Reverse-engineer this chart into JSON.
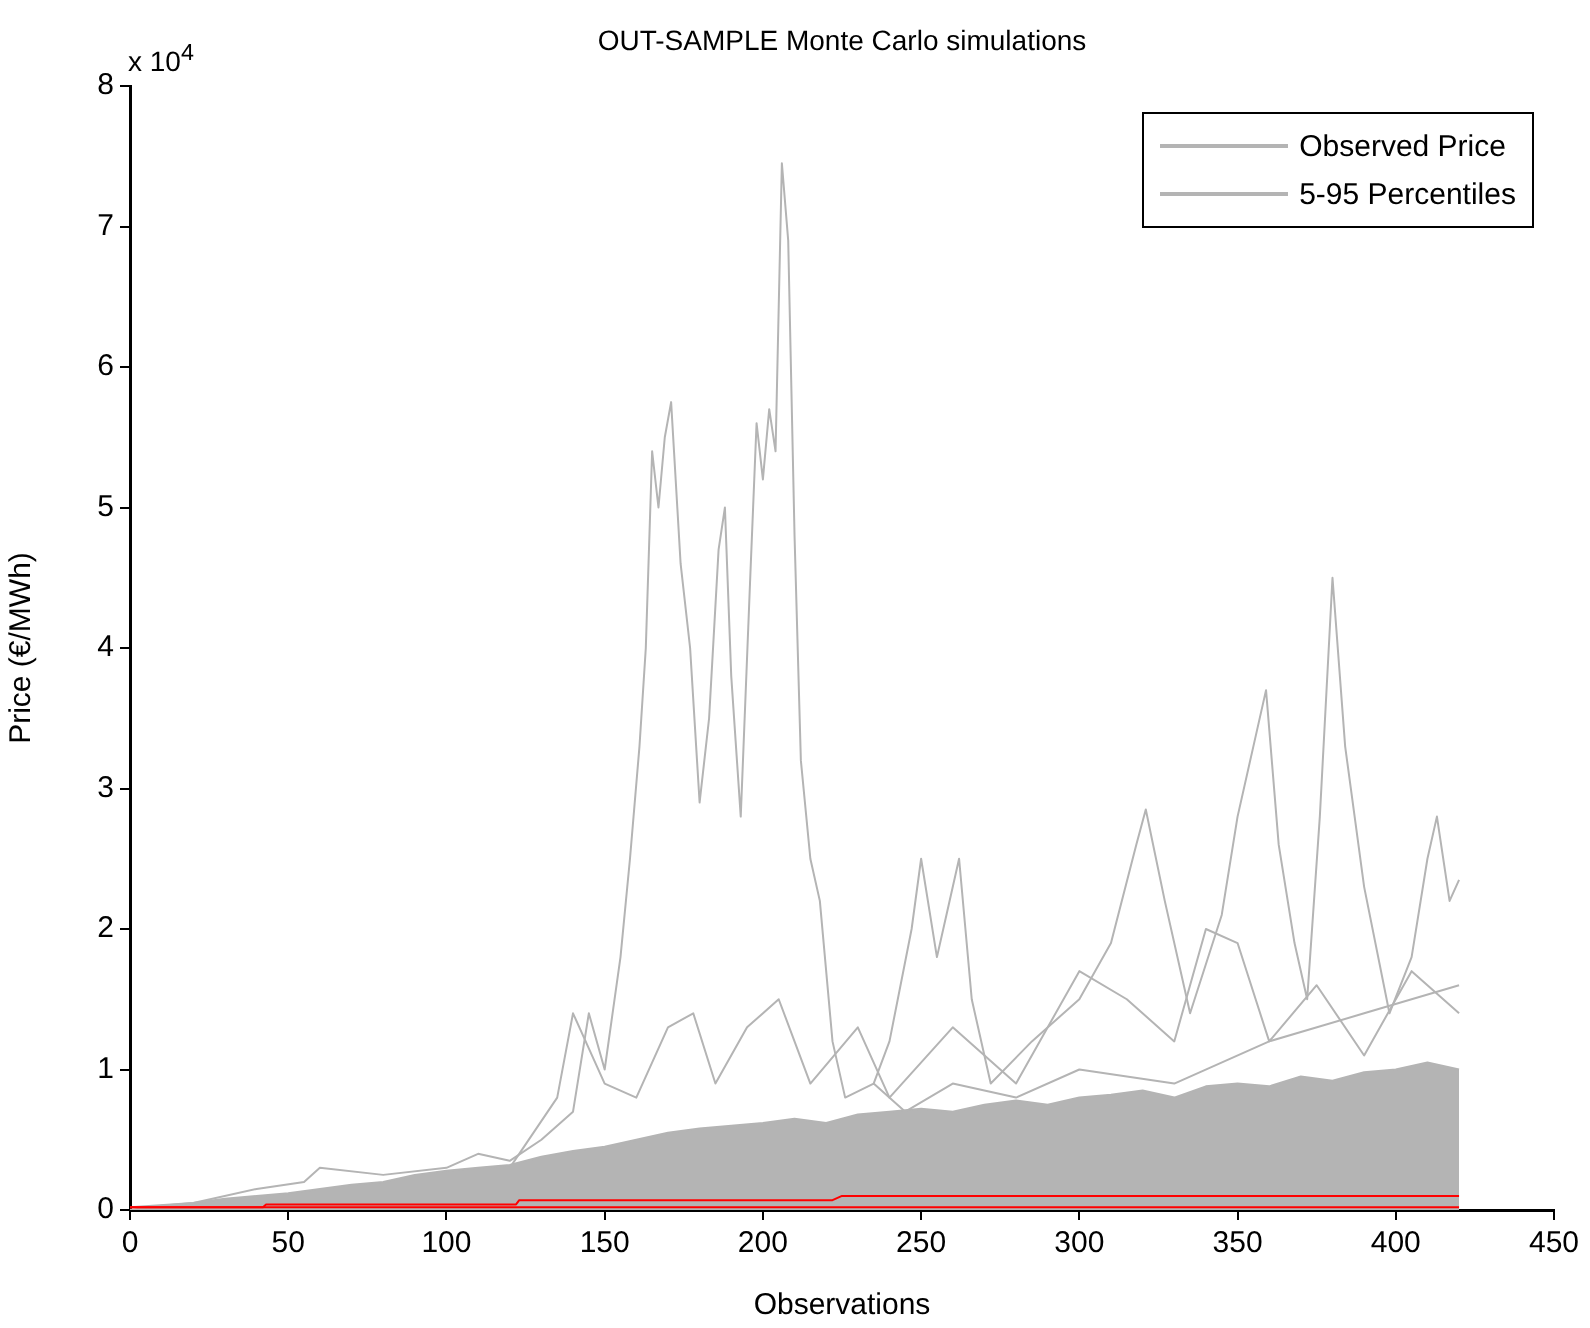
{
  "chart_data": {
    "type": "line",
    "title": "OUT-SAMPLE Monte Carlo simulations",
    "xlabel": "Observations",
    "ylabel": "Price (€/MWh)",
    "annotations": [
      "x 10$^{4}$"
    ],
    "xlim": [
      0,
      450
    ],
    "xticks": [
      0,
      50,
      100,
      150,
      200,
      250,
      300,
      350,
      400,
      450
    ],
    "ylim": [
      0,
      8
    ],
    "yticks": [
      0,
      1,
      2,
      3,
      4,
      5,
      6,
      7,
      8
    ],
    "grid": false,
    "legend": "top right",
    "marker": "none",
    "line_style": "solid",
    "series": [
      {
        "type": "area",
        "color": "#b4b4b4",
        "x": [
          0,
          10,
          20,
          30,
          40,
          50,
          60,
          70,
          80,
          90,
          100,
          110,
          120,
          130,
          140,
          150,
          160,
          170,
          180,
          190,
          200,
          210,
          220,
          230,
          240,
          250,
          260,
          270,
          280,
          290,
          300,
          310,
          320,
          330,
          340,
          350,
          360,
          370,
          380,
          390,
          400,
          410,
          420
        ],
        "values": [
          0,
          0.03,
          0.05,
          0.08,
          0.1,
          0.12,
          0.15,
          0.18,
          0.2,
          0.25,
          0.28,
          0.3,
          0.32,
          0.38,
          0.42,
          0.45,
          0.5,
          0.55,
          0.58,
          0.6,
          0.62,
          0.65,
          0.62,
          0.68,
          0.7,
          0.72,
          0.7,
          0.75,
          0.78,
          0.75,
          0.8,
          0.82,
          0.85,
          0.8,
          0.88,
          0.9,
          0.88,
          0.95,
          0.92,
          0.98,
          1.0,
          1.05,
          1.0
        ]
      },
      {
        "name": "Observed Price",
        "color": "#b4b4b4",
        "x": [
          0,
          20,
          40,
          55,
          60,
          80,
          100,
          110,
          120,
          130,
          140,
          145,
          150,
          155,
          158,
          161,
          163,
          165,
          167,
          169,
          171,
          174,
          177,
          180,
          183,
          186,
          188,
          190,
          193,
          196,
          198,
          200,
          202,
          204,
          206,
          208,
          210,
          212,
          215,
          218,
          222,
          226,
          235,
          245,
          260,
          280,
          300,
          330,
          360,
          390,
          420
        ],
        "values": [
          0.02,
          0.05,
          0.15,
          0.2,
          0.3,
          0.25,
          0.3,
          0.4,
          0.35,
          0.5,
          0.7,
          1.4,
          1.0,
          1.8,
          2.5,
          3.3,
          4.0,
          5.4,
          5.0,
          5.5,
          5.75,
          4.6,
          4.0,
          2.9,
          3.5,
          4.7,
          5.0,
          3.8,
          2.8,
          4.5,
          5.6,
          5.2,
          5.7,
          5.4,
          7.45,
          6.9,
          4.8,
          3.2,
          2.5,
          2.2,
          1.2,
          0.8,
          0.9,
          0.7,
          0.9,
          0.8,
          1.0,
          0.9,
          1.2,
          1.4,
          1.6
        ]
      },
      {
        "name": "5-95 Percentiles",
        "color": "#b4b4b4",
        "x": [
          235,
          240,
          247,
          250,
          255,
          258,
          262,
          266,
          272,
          285,
          300,
          310,
          318,
          321,
          327,
          335,
          345,
          350,
          355,
          359,
          363,
          368,
          372,
          376,
          380,
          384,
          390,
          398,
          405,
          410,
          413,
          417,
          420
        ],
        "values": [
          0.9,
          1.2,
          2.0,
          2.5,
          1.8,
          2.1,
          2.5,
          1.5,
          0.9,
          1.2,
          1.5,
          1.9,
          2.6,
          2.85,
          2.2,
          1.4,
          2.1,
          2.8,
          3.3,
          3.7,
          2.6,
          1.9,
          1.5,
          2.8,
          4.5,
          3.3,
          2.3,
          1.4,
          1.8,
          2.5,
          2.8,
          2.2,
          2.35
        ]
      },
      {
        "color": "#b4b4b4",
        "x": [
          120,
          135,
          140,
          150,
          160,
          170,
          178,
          185,
          195,
          205,
          215,
          230,
          240,
          260,
          280,
          300,
          315,
          330,
          340,
          350,
          360,
          375,
          390,
          405,
          420
        ],
        "values": [
          0.3,
          0.8,
          1.4,
          0.9,
          0.8,
          1.3,
          1.4,
          0.9,
          1.3,
          1.5,
          0.9,
          1.3,
          0.8,
          1.3,
          0.9,
          1.7,
          1.5,
          1.2,
          2.0,
          1.9,
          1.2,
          1.6,
          1.1,
          1.7,
          1.4
        ]
      },
      {
        "color": "#ff0000",
        "x": [
          0,
          420
        ],
        "values": [
          0.02,
          0.02
        ]
      },
      {
        "color": "#ff0000",
        "x": [
          0,
          42,
          43,
          122,
          123,
          222,
          225,
          420
        ],
        "values": [
          0.02,
          0.02,
          0.04,
          0.04,
          0.07,
          0.07,
          0.1,
          0.1
        ]
      }
    ]
  }
}
